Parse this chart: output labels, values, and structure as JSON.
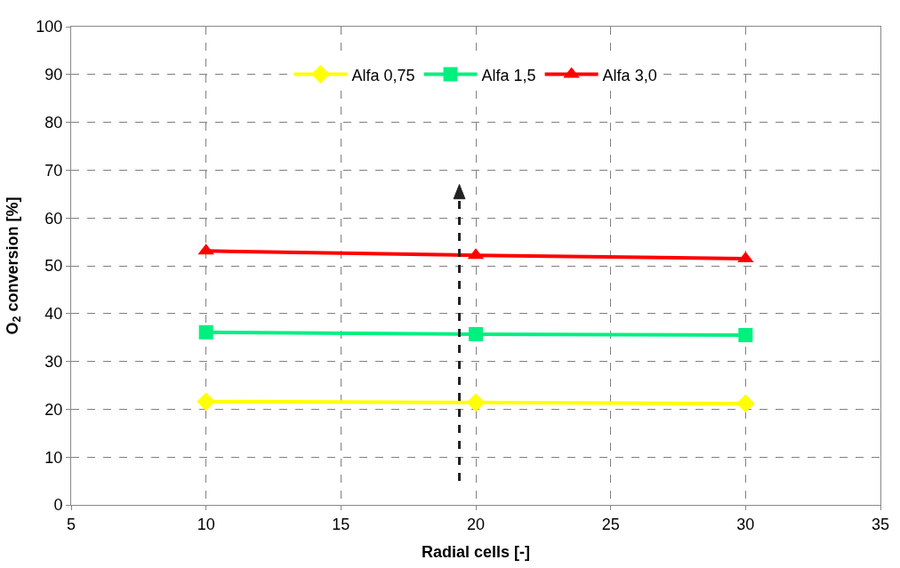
{
  "chart_data": {
    "type": "line",
    "xlabel": "Radial cells [-]",
    "ylabel": "O$_{2}$ conversion [%]",
    "x": [
      10,
      20,
      30
    ],
    "series": [
      {
        "name": "Alfa 0,75",
        "color": "#ffff00",
        "marker": "diamond",
        "values": [
          21.6,
          21.4,
          21.2
        ]
      },
      {
        "name": "Alfa 1,5",
        "color": "#00f080",
        "marker": "square",
        "values": [
          36.1,
          35.7,
          35.5
        ]
      },
      {
        "name": "Alfa 3,0",
        "color": "#ff0000",
        "marker": "triangle",
        "values": [
          53.1,
          52.2,
          51.5
        ]
      }
    ],
    "xlim": [
      5,
      35
    ],
    "xticks": [
      5,
      10,
      15,
      20,
      25,
      30,
      35
    ],
    "ylim": [
      0,
      100
    ],
    "yticks": [
      0,
      10,
      20,
      30,
      40,
      50,
      60,
      70,
      80,
      90,
      100
    ],
    "grid": true,
    "legend": "top",
    "line_style": "solid"
  }
}
